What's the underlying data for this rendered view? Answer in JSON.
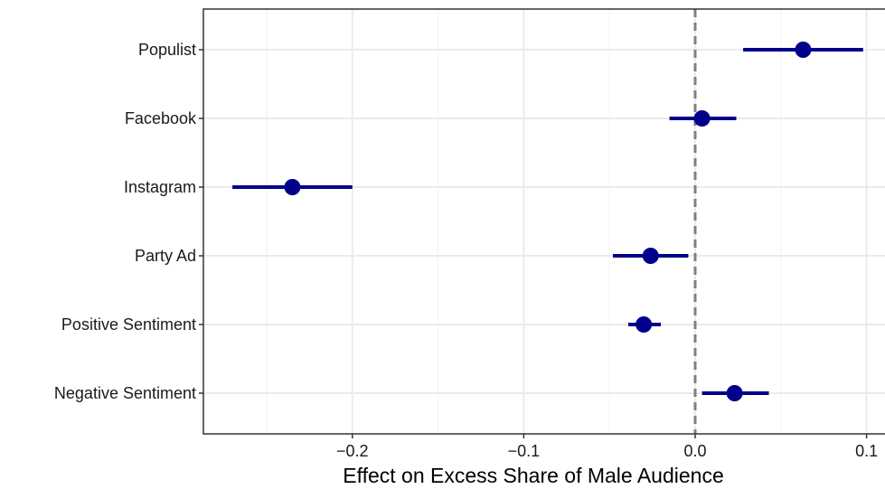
{
  "chart_data": {
    "type": "scatter",
    "subtype": "coefficient-plot",
    "title": "",
    "xlabel": "Effect on Excess Share of Male Audience",
    "ylabel": "",
    "xlim": [
      -0.29,
      0.1
    ],
    "x_ticks": [
      -0.2,
      -0.1,
      0.0,
      0.1
    ],
    "x_tick_labels": [
      "−0.2",
      "−0.1",
      "0.0",
      "0.1"
    ],
    "reference_line": {
      "x": 0,
      "style": "dashed",
      "color": "#808080"
    },
    "grid": true,
    "legend": "none",
    "point_color": "#00008B",
    "categories": [
      "Populist",
      "Facebook",
      "Instagram",
      "Party Ad",
      "Positive Sentiment",
      "Negative Sentiment"
    ],
    "estimates": [
      0.063,
      0.004,
      -0.235,
      -0.026,
      -0.03,
      0.023
    ],
    "ci_low": [
      0.028,
      -0.015,
      -0.27,
      -0.048,
      -0.039,
      0.004
    ],
    "ci_high": [
      0.098,
      0.024,
      -0.2,
      -0.004,
      -0.02,
      0.043
    ]
  }
}
